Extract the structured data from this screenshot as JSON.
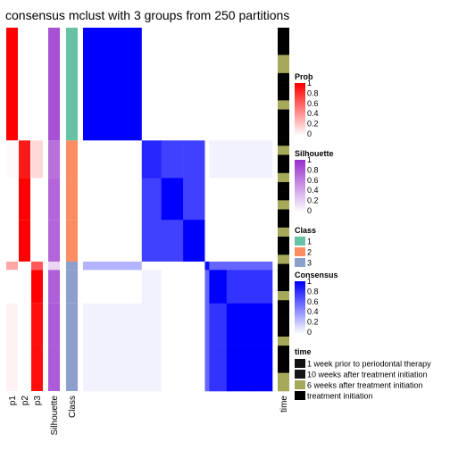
{
  "chart_data": {
    "type": "heatmap",
    "title": "consensus mclust with 3 groups from 250 partitions",
    "column_labels": [
      "p1",
      "p2",
      "p3",
      "Silhouette",
      "Class",
      "time"
    ],
    "row_blocks": [
      {
        "rows": 27,
        "class": 1,
        "p1": 1.0,
        "p2": 0.0,
        "p3": 0.0,
        "silhouette": 0.85
      },
      {
        "rows": 9,
        "class": 2,
        "p1": 0.02,
        "p2": 0.9,
        "p3": 0.15,
        "silhouette": 0.7
      },
      {
        "rows": 10,
        "class": 2,
        "p1": 0.0,
        "p2": 1.0,
        "p3": 0.0,
        "silhouette": 0.75
      },
      {
        "rows": 10,
        "class": 2,
        "p1": 0.0,
        "p2": 1.0,
        "p3": 0.0,
        "silhouette": 0.75
      },
      {
        "rows": 2,
        "class": 3,
        "p1": 0.35,
        "p2": 0.0,
        "p3": 0.65,
        "silhouette": 0.2
      },
      {
        "rows": 8,
        "class": 3,
        "p1": 0.0,
        "p2": 0.0,
        "p3": 1.0,
        "silhouette": 0.78
      },
      {
        "rows": 10,
        "class": 3,
        "p1": 0.05,
        "p2": 0.0,
        "p3": 0.95,
        "silhouette": 0.8
      },
      {
        "rows": 11,
        "class": 3,
        "p1": 0.05,
        "p2": 0.0,
        "p3": 0.95,
        "silhouette": 0.8
      }
    ],
    "consensus_block_values": [
      [
        1.0,
        0.0,
        0.0,
        0.0,
        0.0,
        0.0,
        0.0,
        0.0
      ],
      [
        0.0,
        0.85,
        0.75,
        0.75,
        0.0,
        0.05,
        0.05,
        0.05
      ],
      [
        0.0,
        0.75,
        1.0,
        0.75,
        0.0,
        0.0,
        0.0,
        0.0
      ],
      [
        0.0,
        0.75,
        0.75,
        1.0,
        0.0,
        0.0,
        0.0,
        0.0
      ],
      [
        0.3,
        0.0,
        0.0,
        0.0,
        0.95,
        0.6,
        0.6,
        0.6
      ],
      [
        0.0,
        0.05,
        0.0,
        0.0,
        0.6,
        1.0,
        0.8,
        0.8
      ],
      [
        0.05,
        0.05,
        0.0,
        0.0,
        0.6,
        0.8,
        1.0,
        1.0
      ],
      [
        0.05,
        0.05,
        0.0,
        0.0,
        0.6,
        0.8,
        1.0,
        1.0
      ]
    ],
    "time_stripe": [
      3,
      3,
      3,
      2,
      2,
      3,
      3,
      3,
      2,
      3,
      3,
      3,
      3,
      2,
      3,
      3,
      2,
      3,
      3,
      2,
      3,
      3,
      2,
      3,
      3,
      2,
      3,
      3,
      3,
      2,
      3,
      3,
      3,
      3,
      2,
      3,
      3,
      3,
      2,
      2
    ],
    "legends": {
      "prob": {
        "title": "Prob",
        "ticks": [
          "1",
          "0.8",
          "0.6",
          "0.4",
          "0.2",
          "0"
        ],
        "high": "#ff0000",
        "low": "#ffffff"
      },
      "silhouette": {
        "title": "Silhouette",
        "ticks": [
          "1",
          "0.8",
          "0.6",
          "0.4",
          "0.2",
          "0"
        ],
        "high": "#9932cc",
        "low": "#ffffff"
      },
      "class": {
        "title": "Class",
        "items": [
          {
            "label": "1",
            "color": "#66c2a5"
          },
          {
            "label": "2",
            "color": "#fc8d62"
          },
          {
            "label": "3",
            "color": "#8da0cb"
          }
        ]
      },
      "consensus": {
        "title": "Consensus",
        "ticks": [
          "1",
          "0.8",
          "0.6",
          "0.4",
          "0.2",
          "0"
        ],
        "high": "#0000ff",
        "low": "#ffffff"
      },
      "time": {
        "title": "time",
        "items": [
          {
            "label": "1 week prior to periodontal therapy",
            "color": "#111111"
          },
          {
            "label": "10 weeks after treatment initiation",
            "color": "#161616"
          },
          {
            "label": "6 weeks after treatment initiation",
            "color": "#a6a95a"
          },
          {
            "label": "treatment initiation",
            "color": "#000000"
          }
        ]
      }
    }
  }
}
